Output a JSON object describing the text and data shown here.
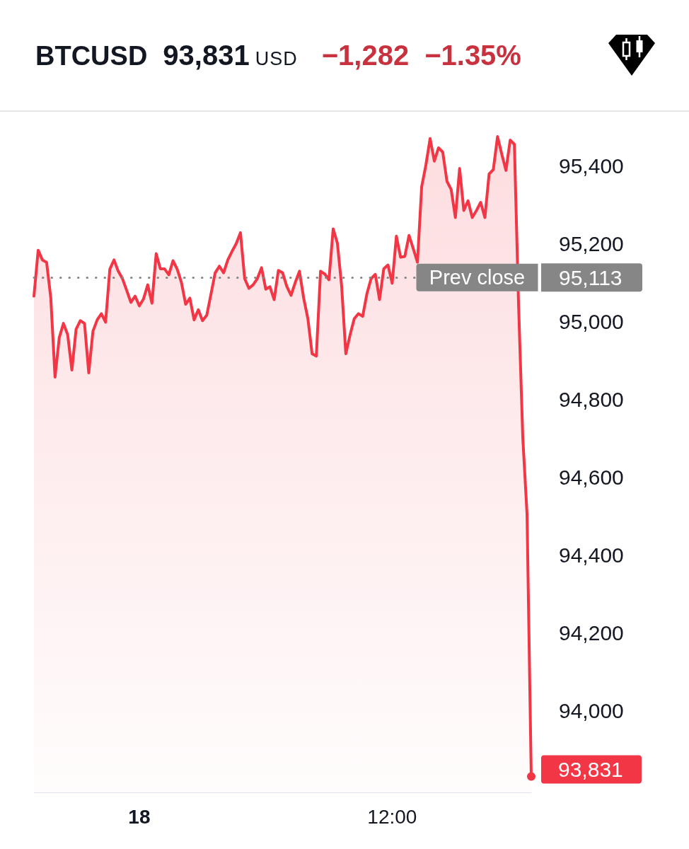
{
  "chart_data": {
    "type": "area",
    "title": "BTCUSD",
    "annotations": [
      "93,831",
      "USD",
      "−1,282",
      "−1.35%"
    ],
    "categories": [
      null,
      null,
      null,
      null,
      null,
      null,
      null,
      null,
      null,
      null,
      null,
      null,
      null,
      null,
      null,
      null,
      null,
      null,
      null,
      null,
      null,
      null,
      null,
      null,
      null,
      "18",
      null,
      null,
      null,
      null,
      null,
      null,
      null,
      null,
      null,
      null,
      null,
      null,
      null,
      null,
      null,
      null,
      null,
      null,
      null,
      null,
      null,
      null,
      null,
      null,
      null,
      null,
      null,
      null,
      null,
      null,
      null,
      null,
      null,
      null,
      null,
      null,
      null,
      null,
      null,
      null,
      null,
      null,
      null,
      null,
      null,
      null,
      null,
      null,
      null,
      null,
      null,
      null,
      null,
      null,
      null,
      null,
      null,
      null,
      null,
      "12:00",
      null,
      null,
      null,
      null,
      null,
      null,
      null,
      null,
      null,
      null,
      null,
      null,
      null,
      null,
      null,
      null,
      null,
      null,
      null,
      null,
      null,
      null,
      null,
      null,
      null,
      null,
      null,
      null,
      null,
      null,
      null,
      null,
      null
    ],
    "values": [
      95065,
      95183,
      95158,
      95152,
      95060,
      94857,
      94958,
      94995,
      94966,
      94875,
      94980,
      95002,
      94995,
      94868,
      94975,
      95004,
      95020,
      94998,
      95134,
      95158,
      95129,
      95110,
      95080,
      95049,
      95065,
      95040,
      95058,
      95094,
      95047,
      95174,
      95135,
      95135,
      95120,
      95156,
      95134,
      95100,
      95044,
      95060,
      95004,
      95030,
      95002,
      95016,
      95070,
      95125,
      95142,
      95125,
      95158,
      95180,
      95200,
      95228,
      95110,
      95085,
      95094,
      95110,
      95138,
      95083,
      95089,
      95056,
      95131,
      95125,
      95090,
      95067,
      95100,
      95129,
      95060,
      95007,
      94917,
      94911,
      95129,
      95122,
      95107,
      95238,
      95201,
      95092,
      94917,
      94965,
      95007,
      95020,
      95013,
      95071,
      95110,
      95121,
      95056,
      95135,
      95145,
      95098,
      95219,
      95165,
      95167,
      95221,
      95187,
      95152,
      95346,
      95402,
      95470,
      95412,
      95446,
      95435,
      95360,
      95339,
      95267,
      95393,
      95285,
      95310,
      95267,
      95285,
      95306,
      95267,
      95379,
      95390,
      95475,
      95430,
      95388,
      95466,
      95455,
      95040,
      94700,
      94505,
      93831
    ],
    "value_labels": [
      null,
      null,
      null,
      null,
      null,
      null,
      null,
      null,
      null,
      null,
      null,
      null,
      null,
      null,
      null,
      null,
      null,
      null,
      null,
      null,
      null,
      null,
      null,
      null,
      null,
      null,
      null,
      null,
      null,
      null,
      null,
      null,
      null,
      null,
      null,
      null,
      null,
      null,
      null,
      null,
      null,
      null,
      null,
      null,
      null,
      null,
      null,
      null,
      null,
      null,
      null,
      null,
      null,
      null,
      null,
      null,
      null,
      null,
      null,
      null,
      null,
      null,
      null,
      null,
      null,
      null,
      null,
      null,
      null,
      null,
      null,
      null,
      null,
      null,
      null,
      null,
      null,
      null,
      null,
      null,
      null,
      null,
      null,
      null,
      null,
      null,
      null,
      null,
      null,
      null,
      null,
      null,
      null,
      null,
      null,
      null,
      null,
      null,
      null,
      null,
      null,
      null,
      null,
      null,
      null,
      null,
      null,
      null,
      null,
      null,
      null,
      null,
      null,
      null,
      null,
      null,
      null,
      null,
      "93,831"
    ],
    "color": "#f23645",
    "ylim": [
      93790,
      95535
    ],
    "yticks": [
      {
        "value": 94000,
        "label": "94,000"
      },
      {
        "value": 94200,
        "label": "94,200"
      },
      {
        "value": 94400,
        "label": "94,400"
      },
      {
        "value": 94600,
        "label": "94,600"
      },
      {
        "value": 94800,
        "label": "94,800"
      },
      {
        "value": 95000,
        "label": "95,000"
      },
      {
        "value": 95113,
        "label": "95,113"
      },
      {
        "value": 95200,
        "label": "95,200"
      },
      {
        "value": 95400,
        "label": "95,400"
      }
    ],
    "ref_lines": [
      {
        "axis": "y",
        "value": 95113,
        "label": "Prev close",
        "color": "#868686",
        "line_style": "dotted"
      }
    ]
  }
}
